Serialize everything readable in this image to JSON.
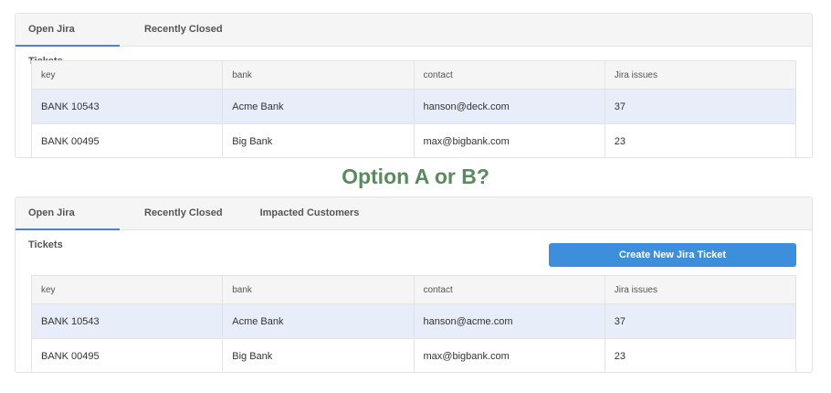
{
  "heading": "Option A or B?",
  "option_a": {
    "tabs": [
      "Open Jira Tickets",
      "Recently Closed"
    ],
    "columns": [
      "key",
      "bank",
      "contact",
      "Jira issues"
    ],
    "rows": [
      [
        "BANK 10543",
        "Acme Bank",
        "hanson@deck.com",
        "37"
      ],
      [
        "BANK 00495",
        "Big Bank",
        "max@bigbank.com",
        "23"
      ]
    ]
  },
  "option_b": {
    "tabs": [
      "Open Jira Tickets",
      "Recently Closed",
      "Impacted Customers"
    ],
    "button": "Create New Jira Ticket",
    "columns": [
      "key",
      "bank",
      "contact",
      "Jira issues"
    ],
    "rows": [
      [
        "BANK 10543",
        "Acme Bank",
        "hanson@acme.com",
        "37"
      ],
      [
        "BANK 00495",
        "Big Bank",
        "max@bigbank.com",
        "23"
      ]
    ]
  },
  "colors": {
    "accent": "#3d8fdb",
    "heading": "#5b8a5f",
    "row_highlight": "#e8eef9"
  }
}
